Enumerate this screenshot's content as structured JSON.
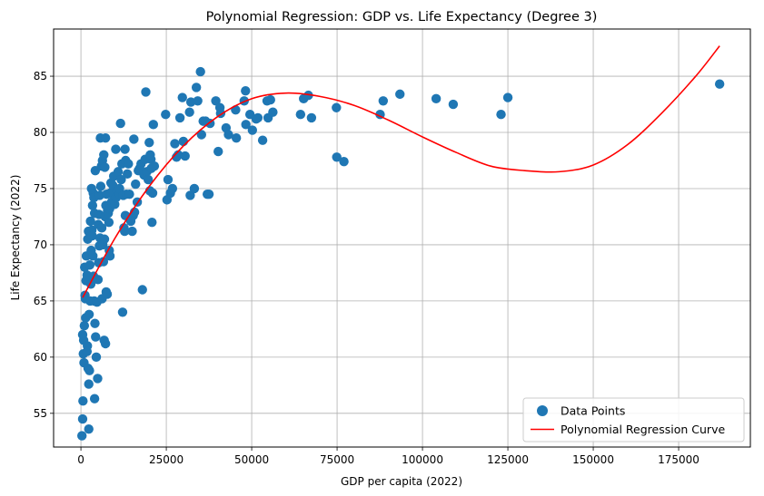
{
  "chart_data": {
    "type": "scatter",
    "title": "Polynomial Regression: GDP vs. Life Expectancy (Degree 3)",
    "xlabel": "GDP per capita (2022)",
    "ylabel": "Life Expectancy (2022)",
    "xlim": [
      -8000,
      196000
    ],
    "ylim": [
      52.0,
      89.2
    ],
    "xticks": [
      0,
      25000,
      50000,
      75000,
      100000,
      125000,
      150000,
      175000
    ],
    "yticks": [
      55,
      60,
      65,
      70,
      75,
      80,
      85
    ],
    "grid": true,
    "legend_position": "lower-right",
    "colors": {
      "points": "#1f77b4",
      "curve": "#ff0000",
      "grid": "#b0b0b0"
    },
    "series": [
      {
        "name": "Data Points",
        "kind": "scatter",
        "points": [
          [
            300,
            53
          ],
          [
            500,
            54.5
          ],
          [
            600,
            56.1
          ],
          [
            900,
            59.5
          ],
          [
            700,
            60.3
          ],
          [
            800,
            61.5
          ],
          [
            1000,
            62.8
          ],
          [
            500,
            62
          ],
          [
            1300,
            65.2
          ],
          [
            1200,
            65.5
          ],
          [
            1500,
            66.8
          ],
          [
            1800,
            67.3
          ],
          [
            2000,
            70.5
          ],
          [
            2200,
            71.2
          ],
          [
            1100,
            68
          ],
          [
            1600,
            69
          ],
          [
            1400,
            63.5
          ],
          [
            1800,
            60.5
          ],
          [
            2100,
            59
          ],
          [
            2300,
            57.6
          ],
          [
            2500,
            58.8
          ],
          [
            2300,
            53.6
          ],
          [
            1900,
            61
          ],
          [
            2400,
            63.8
          ],
          [
            2700,
            65
          ],
          [
            2900,
            66.5
          ],
          [
            2600,
            68.2
          ],
          [
            3000,
            69.5
          ],
          [
            3200,
            71.3
          ],
          [
            2800,
            72.1
          ],
          [
            3400,
            73.5
          ],
          [
            3600,
            74.6
          ],
          [
            3100,
            75
          ],
          [
            3800,
            74.2
          ],
          [
            4000,
            72.8
          ],
          [
            4200,
            76.6
          ],
          [
            3300,
            70.8
          ],
          [
            3500,
            69
          ],
          [
            3700,
            67.2
          ],
          [
            3900,
            65
          ],
          [
            4100,
            63
          ],
          [
            4300,
            61.8
          ],
          [
            4500,
            60
          ],
          [
            4000,
            56.3
          ],
          [
            4900,
            58.1
          ],
          [
            4700,
            64.9
          ],
          [
            5000,
            66.9
          ],
          [
            5200,
            68.4
          ],
          [
            5400,
            69.9
          ],
          [
            5600,
            70.6
          ],
          [
            5100,
            71.8
          ],
          [
            5300,
            72.7
          ],
          [
            5500,
            74.4
          ],
          [
            5800,
            75.2
          ],
          [
            6000,
            77
          ],
          [
            5700,
            79.5
          ],
          [
            6300,
            77.5
          ],
          [
            6100,
            71.5
          ],
          [
            6400,
            70
          ],
          [
            6600,
            68.5
          ],
          [
            6200,
            65.2
          ],
          [
            6800,
            61.5
          ],
          [
            7200,
            61.2
          ],
          [
            7400,
            65.8
          ],
          [
            7700,
            65.6
          ],
          [
            6900,
            70.5
          ],
          [
            7100,
            72.5
          ],
          [
            7300,
            73.5
          ],
          [
            7500,
            74.5
          ],
          [
            7800,
            73
          ],
          [
            8000,
            72.8
          ],
          [
            8200,
            72
          ],
          [
            8400,
            73.2
          ],
          [
            8600,
            74.6
          ],
          [
            8800,
            75.5
          ],
          [
            7000,
            76.9
          ],
          [
            6700,
            78
          ],
          [
            7200,
            79.5
          ],
          [
            8300,
            69.5
          ],
          [
            8500,
            69
          ],
          [
            9000,
            73.8
          ],
          [
            9300,
            75.3
          ],
          [
            9600,
            76.1
          ],
          [
            9900,
            73.6
          ],
          [
            10300,
            74.2
          ],
          [
            10600,
            74.8
          ],
          [
            10900,
            76.5
          ],
          [
            10200,
            78.5
          ],
          [
            11600,
            80.8
          ],
          [
            11800,
            75.8
          ],
          [
            12000,
            77.2
          ],
          [
            11400,
            74.5
          ],
          [
            11300,
            75
          ],
          [
            12200,
            64
          ],
          [
            12400,
            74.4
          ],
          [
            12600,
            71.5
          ],
          [
            12800,
            71.2
          ],
          [
            13000,
            72.6
          ],
          [
            13300,
            74.5
          ],
          [
            13600,
            76.3
          ],
          [
            13100,
            77.5
          ],
          [
            12900,
            78.5
          ],
          [
            13900,
            77.2
          ],
          [
            14200,
            74.5
          ],
          [
            14600,
            72.1
          ],
          [
            15000,
            71.2
          ],
          [
            15300,
            72.6
          ],
          [
            15700,
            72.9
          ],
          [
            16000,
            75.4
          ],
          [
            15500,
            79.4
          ],
          [
            16500,
            73.8
          ],
          [
            16800,
            76.6
          ],
          [
            17200,
            76.8
          ],
          [
            17600,
            77.2
          ],
          [
            18000,
            66
          ],
          [
            18500,
            76.2
          ],
          [
            18800,
            77.6
          ],
          [
            19000,
            83.6
          ],
          [
            19300,
            76.5
          ],
          [
            19700,
            75.8
          ],
          [
            20000,
            79.1
          ],
          [
            20200,
            74.8
          ],
          [
            20500,
            77.6
          ],
          [
            20300,
            78
          ],
          [
            20600,
            76.8
          ],
          [
            21000,
            74.6
          ],
          [
            20800,
            72
          ],
          [
            21200,
            80.7
          ],
          [
            21500,
            77
          ],
          [
            24800,
            81.6
          ],
          [
            25200,
            74
          ],
          [
            25500,
            75.8
          ],
          [
            26200,
            74.6
          ],
          [
            26800,
            75
          ],
          [
            27500,
            79
          ],
          [
            28000,
            77.8
          ],
          [
            28500,
            78
          ],
          [
            29000,
            81.3
          ],
          [
            29700,
            83.1
          ],
          [
            30000,
            79.2
          ],
          [
            30500,
            77.9
          ],
          [
            31800,
            81.8
          ],
          [
            32200,
            82.7
          ],
          [
            32000,
            74.4
          ],
          [
            33200,
            75
          ],
          [
            33800,
            84
          ],
          [
            34200,
            82.8
          ],
          [
            35000,
            85.4
          ],
          [
            35300,
            79.8
          ],
          [
            35800,
            81
          ],
          [
            36500,
            81
          ],
          [
            37000,
            74.5
          ],
          [
            37500,
            74.5
          ],
          [
            37800,
            80.8
          ],
          [
            39500,
            82.8
          ],
          [
            40200,
            78.3
          ],
          [
            40700,
            82.2
          ],
          [
            40900,
            81.7
          ],
          [
            42500,
            80.4
          ],
          [
            43200,
            79.8
          ],
          [
            45300,
            82
          ],
          [
            45500,
            79.5
          ],
          [
            47800,
            82.8
          ],
          [
            48200,
            83.7
          ],
          [
            48300,
            80.7
          ],
          [
            49500,
            81.6
          ],
          [
            50200,
            80.2
          ],
          [
            51300,
            81.2
          ],
          [
            51800,
            81.3
          ],
          [
            53200,
            79.3
          ],
          [
            54500,
            82.8
          ],
          [
            54800,
            81.3
          ],
          [
            55500,
            82.9
          ],
          [
            56200,
            81.8
          ],
          [
            64300,
            81.6
          ],
          [
            65200,
            83
          ],
          [
            66600,
            83.3
          ],
          [
            67500,
            81.3
          ],
          [
            74800,
            82.2
          ],
          [
            74900,
            77.8
          ],
          [
            77000,
            77.4
          ],
          [
            87600,
            81.6
          ],
          [
            88500,
            82.8
          ],
          [
            93400,
            83.4
          ],
          [
            104000,
            83
          ],
          [
            109000,
            82.5
          ],
          [
            123000,
            81.6
          ],
          [
            125000,
            83.1
          ],
          [
            187000,
            84.3
          ]
        ]
      },
      {
        "name": "Polynomial Regression Curve",
        "kind": "line",
        "x": [
          500,
          10000,
          20000,
          30000,
          40000,
          50000,
          60000,
          70000,
          80000,
          90000,
          100000,
          110000,
          120000,
          130000,
          140000,
          150000,
          160000,
          170000,
          180000,
          187000
        ],
        "y": [
          65.3,
          70.6,
          75.2,
          78.8,
          81.4,
          83.0,
          83.5,
          83.2,
          82.4,
          81.1,
          79.6,
          78.2,
          77.0,
          76.6,
          76.5,
          77.1,
          78.9,
          81.7,
          85.0,
          87.7
        ]
      }
    ]
  }
}
